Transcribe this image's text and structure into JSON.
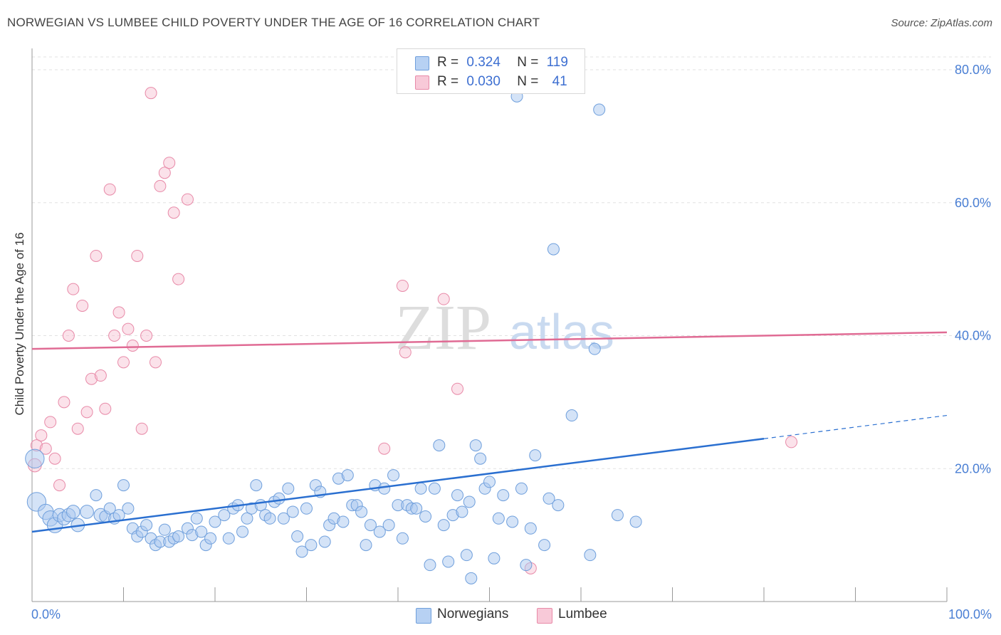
{
  "title": "NORWEGIAN VS LUMBEE CHILD POVERTY UNDER THE AGE OF 16 CORRELATION CHART",
  "source": "Source: ZipAtlas.com",
  "legend": {
    "row1": {
      "r_label": "R =",
      "r_value": "0.324",
      "n_label": "N =",
      "n_value": "119"
    },
    "row2": {
      "r_label": "R =",
      "r_value": "0.030",
      "n_label": "N =",
      "n_value": "41"
    }
  },
  "bottom_legend": {
    "series1": "Norwegians",
    "series2": "Lumbee"
  },
  "colors": {
    "norwegians_fill": "#a9c8f0",
    "norwegians_stroke": "#6f9fdc",
    "norwegians_line": "#2a6fd0",
    "lumbee_fill": "#f6bfd0",
    "lumbee_stroke": "#e88aa8",
    "lumbee_line": "#e06b94",
    "tick_color": "#4a7fd4"
  },
  "chart_data": {
    "type": "scatter",
    "title": "NORWEGIAN VS LUMBEE CHILD POVERTY UNDER THE AGE OF 16 CORRELATION CHART",
    "xlabel": "",
    "ylabel": "Child Poverty Under the Age of 16",
    "xlim": [
      0,
      100
    ],
    "ylim": [
      0,
      80
    ],
    "x_tick_labels": [
      "0.0%",
      "100.0%"
    ],
    "y_tick_labels": [
      "20.0%",
      "40.0%",
      "60.0%",
      "80.0%"
    ],
    "y_ticks": [
      20,
      40,
      60,
      80
    ],
    "grid": true,
    "legend_position": "top-center",
    "series": [
      {
        "name": "Norwegians",
        "r": 0.324,
        "n": 119,
        "trend": {
          "x0": 0,
          "y0": 10.5,
          "x1": 80,
          "y1": 24.5,
          "dashed_to": 100,
          "dashed_y": 28.0
        },
        "points": [
          [
            0.3,
            21.5,
            3
          ],
          [
            0.5,
            15.0,
            3
          ],
          [
            1.5,
            13.5,
            2
          ],
          [
            2,
            12.5,
            2
          ],
          [
            2.5,
            11.5,
            2
          ],
          [
            3,
            13.0,
            1.5
          ],
          [
            3.5,
            12.5,
            1.5
          ],
          [
            4,
            13.0,
            1.5
          ],
          [
            4.5,
            13.5,
            1.5
          ],
          [
            5,
            11.5,
            1.5
          ],
          [
            6,
            13.5,
            1.5
          ],
          [
            7,
            16.0,
            1
          ],
          [
            7.5,
            13.0,
            1.5
          ],
          [
            8,
            12.8,
            1
          ],
          [
            8.5,
            14.0,
            1
          ],
          [
            9,
            12.5,
            1
          ],
          [
            9.5,
            13.0,
            1
          ],
          [
            10,
            17.5,
            1
          ],
          [
            10.5,
            14.0,
            1
          ],
          [
            11,
            11.0,
            1
          ],
          [
            11.5,
            9.8,
            1
          ],
          [
            12,
            10.5,
            1
          ],
          [
            12.5,
            11.5,
            1
          ],
          [
            13,
            9.5,
            1
          ],
          [
            13.5,
            8.5,
            1
          ],
          [
            14,
            9.0,
            1
          ],
          [
            14.5,
            10.8,
            1
          ],
          [
            15,
            9.0,
            1
          ],
          [
            15.5,
            9.5,
            1
          ],
          [
            16,
            9.8,
            1
          ],
          [
            17,
            11.0,
            1
          ],
          [
            17.5,
            10.0,
            1
          ],
          [
            18,
            12.5,
            1
          ],
          [
            18.5,
            10.5,
            1
          ],
          [
            19,
            8.5,
            1
          ],
          [
            19.5,
            9.5,
            1
          ],
          [
            20,
            12.0,
            1
          ],
          [
            21,
            13.0,
            1
          ],
          [
            21.5,
            9.5,
            1
          ],
          [
            22,
            14.0,
            1
          ],
          [
            22.5,
            14.5,
            1
          ],
          [
            23,
            10.5,
            1
          ],
          [
            23.5,
            12.5,
            1
          ],
          [
            24,
            14.0,
            1
          ],
          [
            24.5,
            17.5,
            1
          ],
          [
            25,
            14.5,
            1
          ],
          [
            25.5,
            13.0,
            1
          ],
          [
            26,
            12.5,
            1
          ],
          [
            26.5,
            15.0,
            1
          ],
          [
            27,
            15.5,
            1
          ],
          [
            27.5,
            12.5,
            1
          ],
          [
            28,
            17.0,
            1
          ],
          [
            28.5,
            13.5,
            1
          ],
          [
            29,
            9.8,
            1
          ],
          [
            29.5,
            7.5,
            1
          ],
          [
            30,
            14.0,
            1
          ],
          [
            30.5,
            8.5,
            1
          ],
          [
            31,
            17.5,
            1
          ],
          [
            31.5,
            16.5,
            1
          ],
          [
            32,
            9.0,
            1
          ],
          [
            32.5,
            11.5,
            1
          ],
          [
            33,
            12.5,
            1
          ],
          [
            33.5,
            18.5,
            1
          ],
          [
            34,
            12.0,
            1
          ],
          [
            34.5,
            19.0,
            1
          ],
          [
            35,
            14.5,
            1
          ],
          [
            35.5,
            14.5,
            1
          ],
          [
            36,
            13.5,
            1
          ],
          [
            36.5,
            8.5,
            1
          ],
          [
            37,
            11.5,
            1
          ],
          [
            37.5,
            17.5,
            1
          ],
          [
            38,
            10.5,
            1
          ],
          [
            38.5,
            17.0,
            1
          ],
          [
            39,
            11.5,
            1
          ],
          [
            39.5,
            19.0,
            1
          ],
          [
            40,
            14.5,
            1
          ],
          [
            40.5,
            9.5,
            1
          ],
          [
            41,
            14.5,
            1
          ],
          [
            41.5,
            14.0,
            1
          ],
          [
            42,
            14.0,
            1
          ],
          [
            42.5,
            17.0,
            1
          ],
          [
            43,
            12.8,
            1
          ],
          [
            43.5,
            5.5,
            1
          ],
          [
            44,
            17.0,
            1
          ],
          [
            44.5,
            23.5,
            1
          ],
          [
            45,
            11.5,
            1
          ],
          [
            45.5,
            6.0,
            1
          ],
          [
            46,
            13.0,
            1
          ],
          [
            46.5,
            16.0,
            1
          ],
          [
            47,
            13.5,
            1
          ],
          [
            47.5,
            7.0,
            1
          ],
          [
            47.8,
            15.0,
            1
          ],
          [
            48,
            3.5,
            1
          ],
          [
            48.5,
            23.5,
            1
          ],
          [
            49,
            21.5,
            1
          ],
          [
            49.5,
            17.0,
            1
          ],
          [
            50,
            18.0,
            1
          ],
          [
            50.5,
            6.5,
            1
          ],
          [
            51,
            12.5,
            1
          ],
          [
            51.5,
            16.0,
            1
          ],
          [
            52.5,
            12.0,
            1
          ],
          [
            53,
            76.0,
            1
          ],
          [
            53.5,
            17.0,
            1
          ],
          [
            54,
            5.5,
            1
          ],
          [
            54.5,
            11.0,
            1
          ],
          [
            55,
            22.0,
            1
          ],
          [
            56,
            8.5,
            1
          ],
          [
            56.5,
            15.5,
            1
          ],
          [
            57,
            53.0,
            1
          ],
          [
            57.5,
            14.5,
            1
          ],
          [
            59,
            28.0,
            1
          ],
          [
            61,
            7.0,
            1
          ],
          [
            61.5,
            38.0,
            1
          ],
          [
            62,
            74.0,
            1
          ],
          [
            64,
            13.0,
            1
          ],
          [
            66,
            12.0,
            1
          ]
        ]
      },
      {
        "name": "Lumbee",
        "r": 0.03,
        "n": 41,
        "trend": {
          "x0": 0,
          "y0": 38.0,
          "x1": 100,
          "y1": 40.5
        },
        "points": [
          [
            0.3,
            20.5,
            1.5
          ],
          [
            0.5,
            23.5,
            1
          ],
          [
            1,
            25.0,
            1
          ],
          [
            1.5,
            23.0,
            1
          ],
          [
            2,
            27.0,
            1
          ],
          [
            2.5,
            21.5,
            1
          ],
          [
            3,
            17.5,
            1
          ],
          [
            3.5,
            30.0,
            1
          ],
          [
            4,
            40.0,
            1
          ],
          [
            4.5,
            47.0,
            1
          ],
          [
            5,
            26.0,
            1
          ],
          [
            5.5,
            44.5,
            1
          ],
          [
            6,
            28.5,
            1
          ],
          [
            6.5,
            33.5,
            1
          ],
          [
            7,
            52.0,
            1
          ],
          [
            7.5,
            34.0,
            1
          ],
          [
            8,
            29.0,
            1
          ],
          [
            8.5,
            62.0,
            1
          ],
          [
            9,
            40.0,
            1
          ],
          [
            9.5,
            43.5,
            1
          ],
          [
            10,
            36.0,
            1
          ],
          [
            10.5,
            41.0,
            1
          ],
          [
            11,
            38.5,
            1
          ],
          [
            11.5,
            52.0,
            1
          ],
          [
            12,
            26.0,
            1
          ],
          [
            12.5,
            40.0,
            1
          ],
          [
            13,
            76.5,
            1
          ],
          [
            13.5,
            36.0,
            1
          ],
          [
            14,
            62.5,
            1
          ],
          [
            14.5,
            64.5,
            1
          ],
          [
            15,
            66.0,
            1
          ],
          [
            15.5,
            58.5,
            1
          ],
          [
            16,
            48.5,
            1
          ],
          [
            17,
            60.5,
            1
          ],
          [
            38.5,
            23.0,
            1
          ],
          [
            40.5,
            47.5,
            1
          ],
          [
            40.8,
            37.5,
            1
          ],
          [
            45,
            45.5,
            1
          ],
          [
            46.5,
            32.0,
            1
          ],
          [
            54.5,
            5.0,
            1
          ],
          [
            83,
            24.0,
            1
          ]
        ]
      }
    ]
  }
}
